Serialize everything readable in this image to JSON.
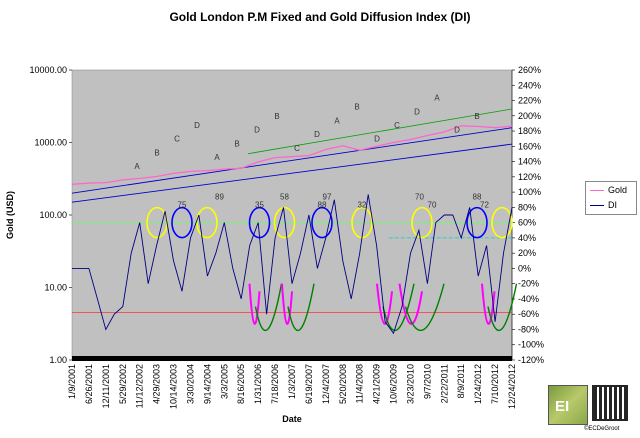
{
  "chart_data": {
    "type": "line",
    "title": "Gold London P.M Fixed and Gold Diffusion Index (DI)",
    "xlabel": "Date",
    "ylabel": "Gold (USD)",
    "y_scale": "log",
    "ylim": [
      1,
      10000
    ],
    "y_ticks": [
      "1.00",
      "10.00",
      "100.00",
      "1000.00",
      "10000.00"
    ],
    "y2lim": [
      -120,
      260
    ],
    "y2_ticks": [
      "-120%",
      "-100%",
      "-80%",
      "-60%",
      "-40%",
      "-20%",
      "0%",
      "20%",
      "40%",
      "60%",
      "80%",
      "100%",
      "120%",
      "140%",
      "160%",
      "180%",
      "200%",
      "220%",
      "240%",
      "260%"
    ],
    "x_ticks": [
      "1/9/2001",
      "6/26/2001",
      "12/11/2001",
      "5/29/2002",
      "11/12/2002",
      "4/29/2003",
      "10/14/2003",
      "3/30/2004",
      "9/14/2004",
      "3/3/2005",
      "8/16/2005",
      "1/31/2006",
      "7/18/2006",
      "1/3/2007",
      "6/19/2007",
      "12/4/2007",
      "5/20/2008",
      "11/4/2008",
      "4/21/2009",
      "10/6/2009",
      "3/23/2010",
      "9/7/2010",
      "2/22/2011",
      "8/9/2011",
      "1/24/2012",
      "7/10/2012",
      "12/24/2012"
    ],
    "grid": false,
    "legend_position": "right",
    "series": [
      {
        "name": "Gold",
        "axis": "left",
        "color": "#ff66cc",
        "x": [
          0,
          1,
          2,
          3,
          4,
          5,
          6,
          7,
          8,
          9,
          10,
          11,
          12,
          13,
          14,
          15,
          16,
          17,
          18,
          19,
          20,
          21,
          22,
          23,
          24,
          25,
          26
        ],
        "values": [
          265,
          275,
          280,
          305,
          320,
          340,
          375,
          400,
          410,
          430,
          440,
          540,
          620,
          640,
          660,
          800,
          900,
          780,
          890,
          1000,
          1100,
          1250,
          1400,
          1700,
          1660,
          1600,
          1680
        ]
      },
      {
        "name": "DI",
        "axis": "right",
        "color": "#000080",
        "x": [
          0,
          0.5,
          1,
          1.5,
          2,
          2.5,
          3,
          3.5,
          4,
          4.5,
          5,
          5.5,
          6,
          6.5,
          7,
          7.5,
          8,
          8.5,
          9,
          9.5,
          10,
          10.5,
          11,
          11.5,
          12,
          12.5,
          13,
          13.5,
          14,
          14.5,
          15,
          15.5,
          16,
          16.5,
          17,
          17.5,
          18,
          18.5,
          19,
          19.5,
          20,
          20.5,
          21,
          21.5,
          22,
          22.5,
          23,
          23.5,
          24,
          24.5,
          25,
          25.5,
          26
        ],
        "values": [
          0,
          0,
          0,
          -40,
          -80,
          -60,
          -50,
          20,
          60,
          -20,
          30,
          75,
          10,
          -30,
          40,
          70,
          -10,
          20,
          60,
          0,
          -40,
          30,
          60,
          -60,
          40,
          80,
          -20,
          20,
          70,
          0,
          40,
          90,
          10,
          -40,
          20,
          97,
          30,
          -70,
          -85,
          -50,
          20,
          50,
          -20,
          60,
          70,
          70,
          40,
          80,
          -10,
          30,
          -70,
          20,
          80
        ]
      }
    ],
    "annotations": {
      "di_peaks": [
        "75",
        "89",
        "35",
        "58",
        "88",
        "97",
        "32",
        "70",
        "70",
        "88",
        "72"
      ],
      "wave_letters": [
        "A",
        "B",
        "C",
        "D",
        "A",
        "B",
        "D",
        "B",
        "C",
        "D",
        "A",
        "B",
        "D",
        "C",
        "D",
        "A",
        "D",
        "B"
      ]
    },
    "reference_lines": {
      "di_upper_green": 60,
      "di_cyan": 40,
      "gold_red": 4.5
    },
    "colors": {
      "plot_bg": "#c0c0c0",
      "gold": "#ff66cc",
      "di": "#000080",
      "channel_blue": "#0000cc",
      "trend_green": "#00a000",
      "circle_yellow": "#ffff00",
      "circle_blue": "#0000ff",
      "cycle_magenta": "#ff00ff",
      "cycle_green": "#008000"
    }
  },
  "legend": {
    "gold": "Gold",
    "di": "DI"
  },
  "credit": "©ECDeGroot",
  "logo_text": "EI"
}
